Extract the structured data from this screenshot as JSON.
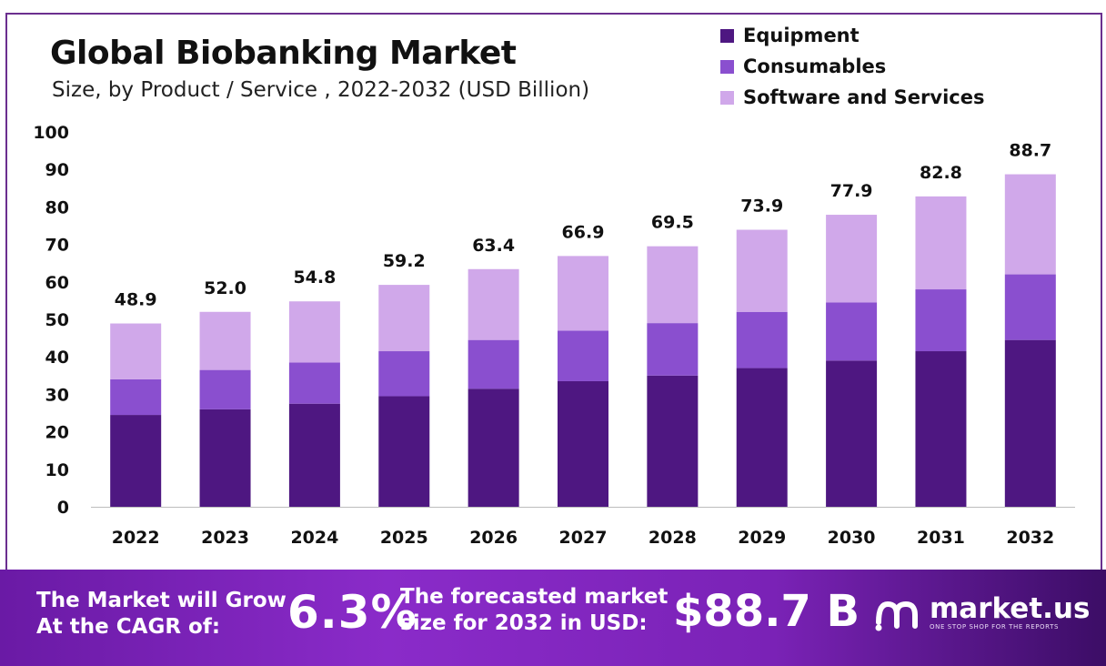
{
  "header": {
    "title": "Global Biobanking Market",
    "subtitle": "Size, by Product / Service , 2022-2032 (USD Billion)"
  },
  "legend": [
    {
      "label": "Equipment",
      "color": "#4e1781"
    },
    {
      "label": "Consumables",
      "color": "#8a4fcf"
    },
    {
      "label": "Software and Services",
      "color": "#d0a8ea"
    }
  ],
  "chart_data": {
    "type": "bar",
    "stacked": true,
    "title": "Global Biobanking Market",
    "subtitle": "Size, by Product / Service , 2022-2032 (USD Billion)",
    "categories": [
      "2022",
      "2023",
      "2024",
      "2025",
      "2026",
      "2027",
      "2028",
      "2029",
      "2030",
      "2031",
      "2032"
    ],
    "series": [
      {
        "name": "Equipment",
        "color": "#4e1781",
        "values": [
          24.5,
          26.0,
          27.5,
          29.5,
          31.5,
          33.5,
          35.0,
          37.0,
          39.0,
          41.5,
          44.5
        ]
      },
      {
        "name": "Consumables",
        "color": "#8a4fcf",
        "values": [
          9.5,
          10.5,
          11.0,
          12.0,
          13.0,
          13.5,
          14.0,
          15.0,
          15.5,
          16.5,
          17.5
        ]
      },
      {
        "name": "Software and Services",
        "color": "#d0a8ea",
        "values": [
          14.9,
          15.5,
          16.3,
          17.7,
          18.9,
          19.9,
          20.5,
          21.9,
          23.4,
          24.8,
          26.7
        ]
      }
    ],
    "totals": [
      "48.9",
      "52.0",
      "54.8",
      "59.2",
      "63.4",
      "66.9",
      "69.5",
      "73.9",
      "77.9",
      "82.8",
      "88.7"
    ],
    "ylim": [
      0,
      100
    ],
    "yticks": [
      0,
      10,
      20,
      30,
      40,
      50,
      60,
      70,
      80,
      90,
      100
    ],
    "grid": false,
    "legend_position": "top-right"
  },
  "footer": {
    "cagr_label": "The Market will Grow At the CAGR of:",
    "cagr_value": "6.3%",
    "forecast_label": "The forecasted market size for 2032 in USD:",
    "forecast_value": "$88.7 B",
    "brand_name": "market.us",
    "brand_tagline": "ONE STOP SHOP FOR THE REPORTS"
  }
}
